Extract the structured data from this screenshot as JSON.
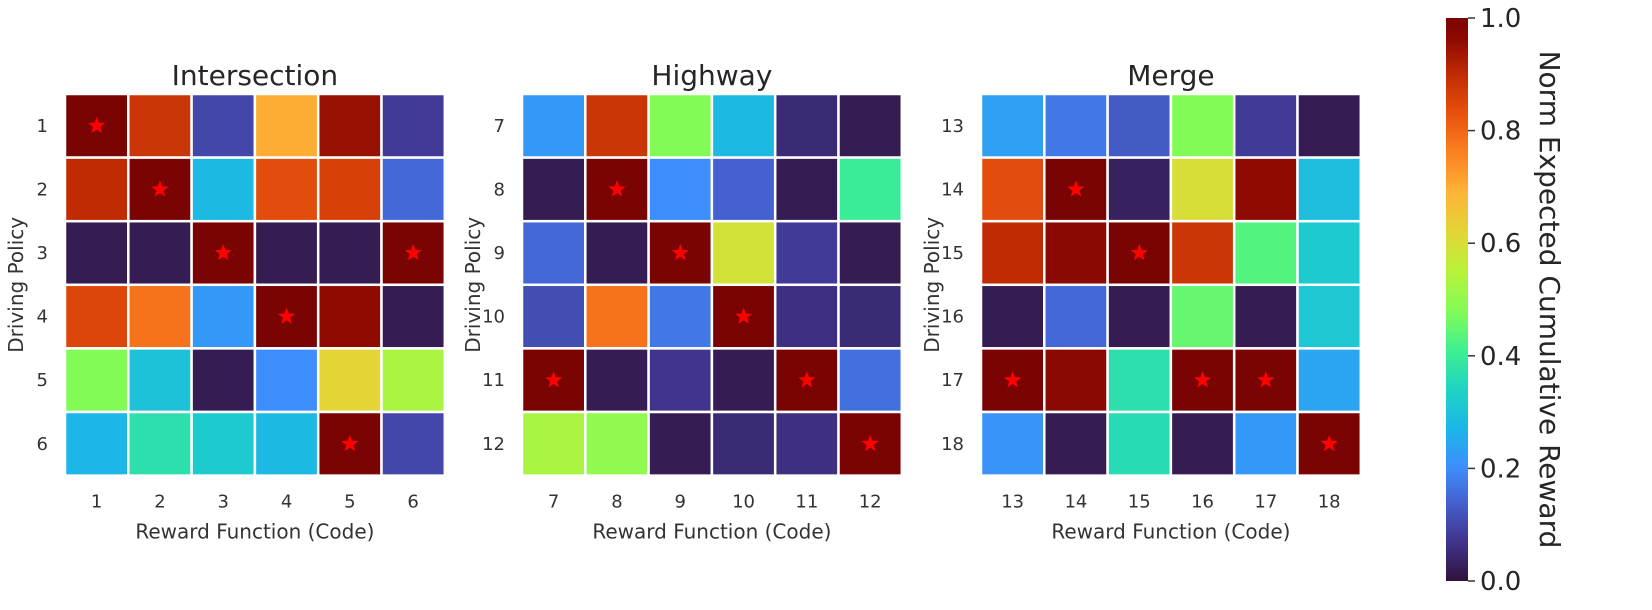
{
  "chart_data": {
    "type": "heatmap",
    "colormap": "turbo",
    "value_range": [
      0.0,
      1.0
    ],
    "marker_color": "#ff0000",
    "panels": [
      {
        "title": "Intersection",
        "xlabel": "Reward Function (Code)",
        "ylabel": "Driving Policy",
        "x_ticks": [
          "1",
          "2",
          "3",
          "4",
          "5",
          "6"
        ],
        "y_ticks": [
          "1",
          "2",
          "3",
          "4",
          "5",
          "6"
        ],
        "values": [
          [
            1.0,
            0.88,
            0.1,
            0.7,
            0.95,
            0.08
          ],
          [
            0.9,
            1.0,
            0.28,
            0.84,
            0.86,
            0.15
          ],
          [
            0.02,
            0.02,
            1.0,
            0.02,
            0.02,
            1.0
          ],
          [
            0.85,
            0.78,
            0.22,
            1.0,
            0.96,
            0.02
          ],
          [
            0.48,
            0.3,
            0.02,
            0.2,
            0.62,
            0.53
          ],
          [
            0.27,
            0.37,
            0.32,
            0.28,
            1.0,
            0.1
          ]
        ],
        "stars": [
          [
            0,
            0
          ],
          [
            1,
            1
          ],
          [
            2,
            2
          ],
          [
            2,
            5
          ],
          [
            3,
            3
          ],
          [
            5,
            4
          ]
        ]
      },
      {
        "title": "Highway",
        "xlabel": "Reward Function (Code)",
        "ylabel": "Driving Policy",
        "x_ticks": [
          "7",
          "8",
          "9",
          "10",
          "11",
          "12"
        ],
        "y_ticks": [
          "7",
          "8",
          "9",
          "10",
          "11",
          "12"
        ],
        "values": [
          [
            0.22,
            0.88,
            0.48,
            0.28,
            0.05,
            0.02
          ],
          [
            0.02,
            1.0,
            0.2,
            0.14,
            0.02,
            0.4
          ],
          [
            0.15,
            0.02,
            1.0,
            0.59,
            0.08,
            0.02
          ],
          [
            0.11,
            0.78,
            0.17,
            1.0,
            0.06,
            0.05
          ],
          [
            1.0,
            0.02,
            0.07,
            0.02,
            1.0,
            0.16
          ],
          [
            0.53,
            0.5,
            0.02,
            0.05,
            0.06,
            1.0
          ]
        ],
        "stars": [
          [
            1,
            1
          ],
          [
            2,
            2
          ],
          [
            3,
            3
          ],
          [
            4,
            0
          ],
          [
            4,
            4
          ],
          [
            5,
            5
          ]
        ]
      },
      {
        "title": "Merge",
        "xlabel": "Reward Function (Code)",
        "ylabel": "Driving Policy",
        "x_ticks": [
          "13",
          "14",
          "15",
          "16",
          "17",
          "18"
        ],
        "y_ticks": [
          "13",
          "14",
          "15",
          "16",
          "17",
          "18"
        ],
        "values": [
          [
            0.23,
            0.17,
            0.13,
            0.48,
            0.08,
            0.02
          ],
          [
            0.84,
            1.0,
            0.03,
            0.6,
            0.96,
            0.29
          ],
          [
            0.9,
            0.97,
            1.0,
            0.88,
            0.43,
            0.32
          ],
          [
            0.02,
            0.15,
            0.02,
            0.45,
            0.02,
            0.31
          ],
          [
            1.0,
            0.97,
            0.37,
            1.0,
            1.0,
            0.24
          ],
          [
            0.21,
            0.02,
            0.36,
            0.02,
            0.22,
            1.0
          ]
        ],
        "stars": [
          [
            1,
            1
          ],
          [
            2,
            2
          ],
          [
            4,
            0
          ],
          [
            4,
            3
          ],
          [
            4,
            4
          ],
          [
            5,
            5
          ]
        ]
      }
    ],
    "colorbar": {
      "label": "Norm Expected Cumulative Reward",
      "ticks": [
        "0.0",
        "0.2",
        "0.4",
        "0.6",
        "0.8",
        "1.0"
      ],
      "tick_values": [
        0.0,
        0.2,
        0.4,
        0.6,
        0.8,
        1.0
      ]
    }
  }
}
